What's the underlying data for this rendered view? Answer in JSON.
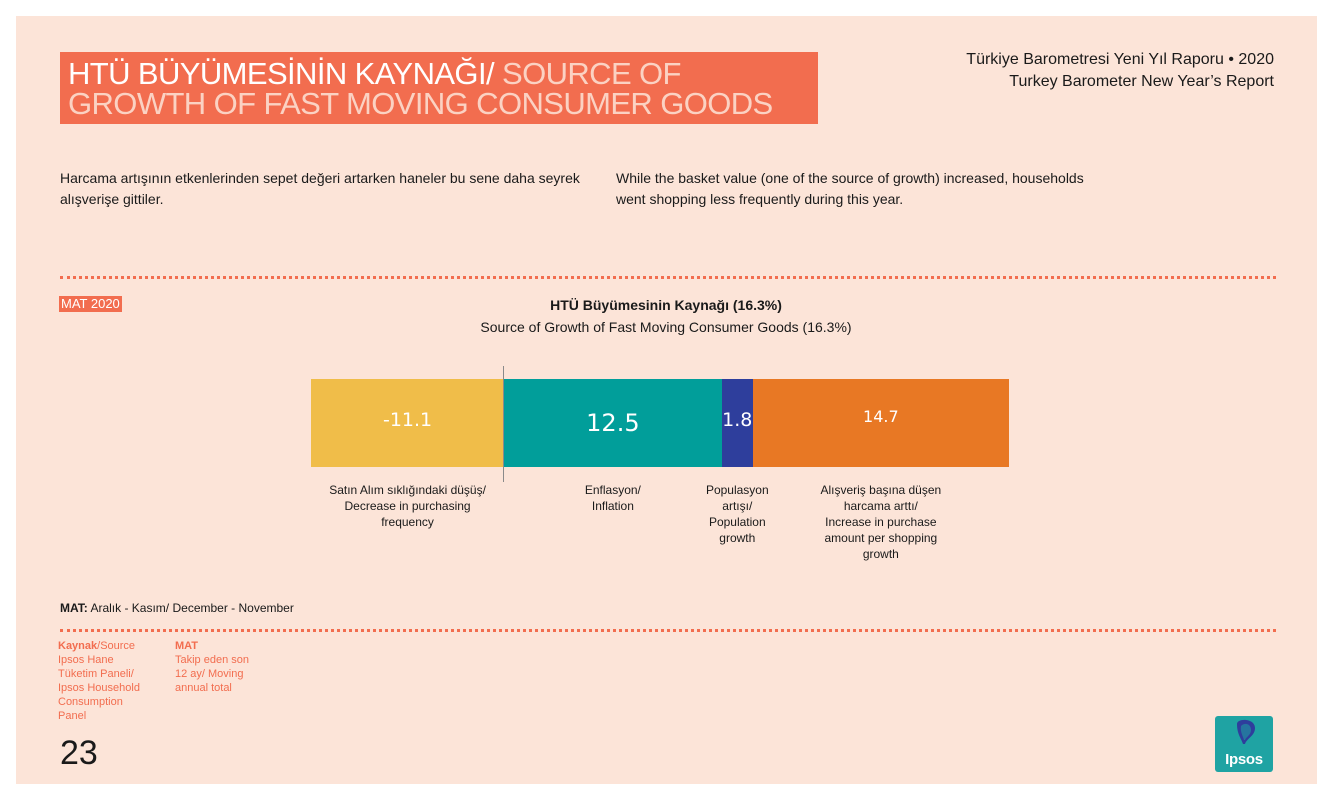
{
  "header": {
    "title_tr": "HTÜ BÜYÜMESİNİN KAYNAĞI/",
    "title_en_line1": "SOURCE OF",
    "title_en_line2": "GROWTH OF FAST MOVING CONSUMER GOODS",
    "report_tr": "Türkiye Barometresi Yeni Yıl Raporu • 2020",
    "report_en": "Turkey Barometer New Year’s Report"
  },
  "intro": {
    "tr": "Harcama artışının etkenlerinden sepet değeri artarken haneler bu sene daha seyrek alışverişe gittiler.",
    "en": "While the basket value (one of the source of growth) increased, households went shopping less frequently during this year."
  },
  "mat_badge": "MAT 2020",
  "chart_data": {
    "type": "bar",
    "orientation": "horizontal-stacked",
    "title": "HTÜ Büyümesinin Kaynağı (16.3%)",
    "subtitle": "Source of Growth of Fast Moving Consumer Goods  (16.3%)",
    "total": 16.3,
    "segments": [
      {
        "value": -11.1,
        "label": "-11.1",
        "color": "#f0bd49",
        "category_lines": [
          "Satın Alım sıklığındaki düşüş/",
          "Decrease in purchasing",
          "frequency"
        ]
      },
      {
        "value": 12.5,
        "label": "12.5",
        "color": "#019e9a",
        "category_lines": [
          "Enflasyon/",
          "Inflation"
        ]
      },
      {
        "value": 1.8,
        "label": "1.8",
        "color": "#2e3e9c",
        "category_lines": [
          "Populasyon",
          "artışı/",
          "Population",
          "growth"
        ]
      },
      {
        "value": 14.7,
        "label": "14.7",
        "color": "#e87824",
        "category_lines": [
          "Alışveriş başına düşen",
          "harcama arttı/",
          "Increase in purchase",
          "amount per shopping",
          "growth"
        ]
      }
    ],
    "baseline_color": "#8a8a8a"
  },
  "footnote": {
    "bold": "MAT:",
    "text1": " Aralık - Kasım/",
    "text2": " December - November"
  },
  "source": {
    "label_bold": "Kaynak",
    "label_rest": "/Source",
    "lines": [
      "Ipsos Hane",
      "Tüketim Paneli/",
      "Ipsos Household",
      "Consumption",
      "Panel"
    ]
  },
  "mat_def": {
    "label_bold": "MAT",
    "lines": [
      "Takip eden son",
      "12 ay/ Moving",
      "annual total"
    ]
  },
  "page_number": "23",
  "logo": {
    "text": "Ipsos",
    "bg_color": "#1fa3a3"
  }
}
